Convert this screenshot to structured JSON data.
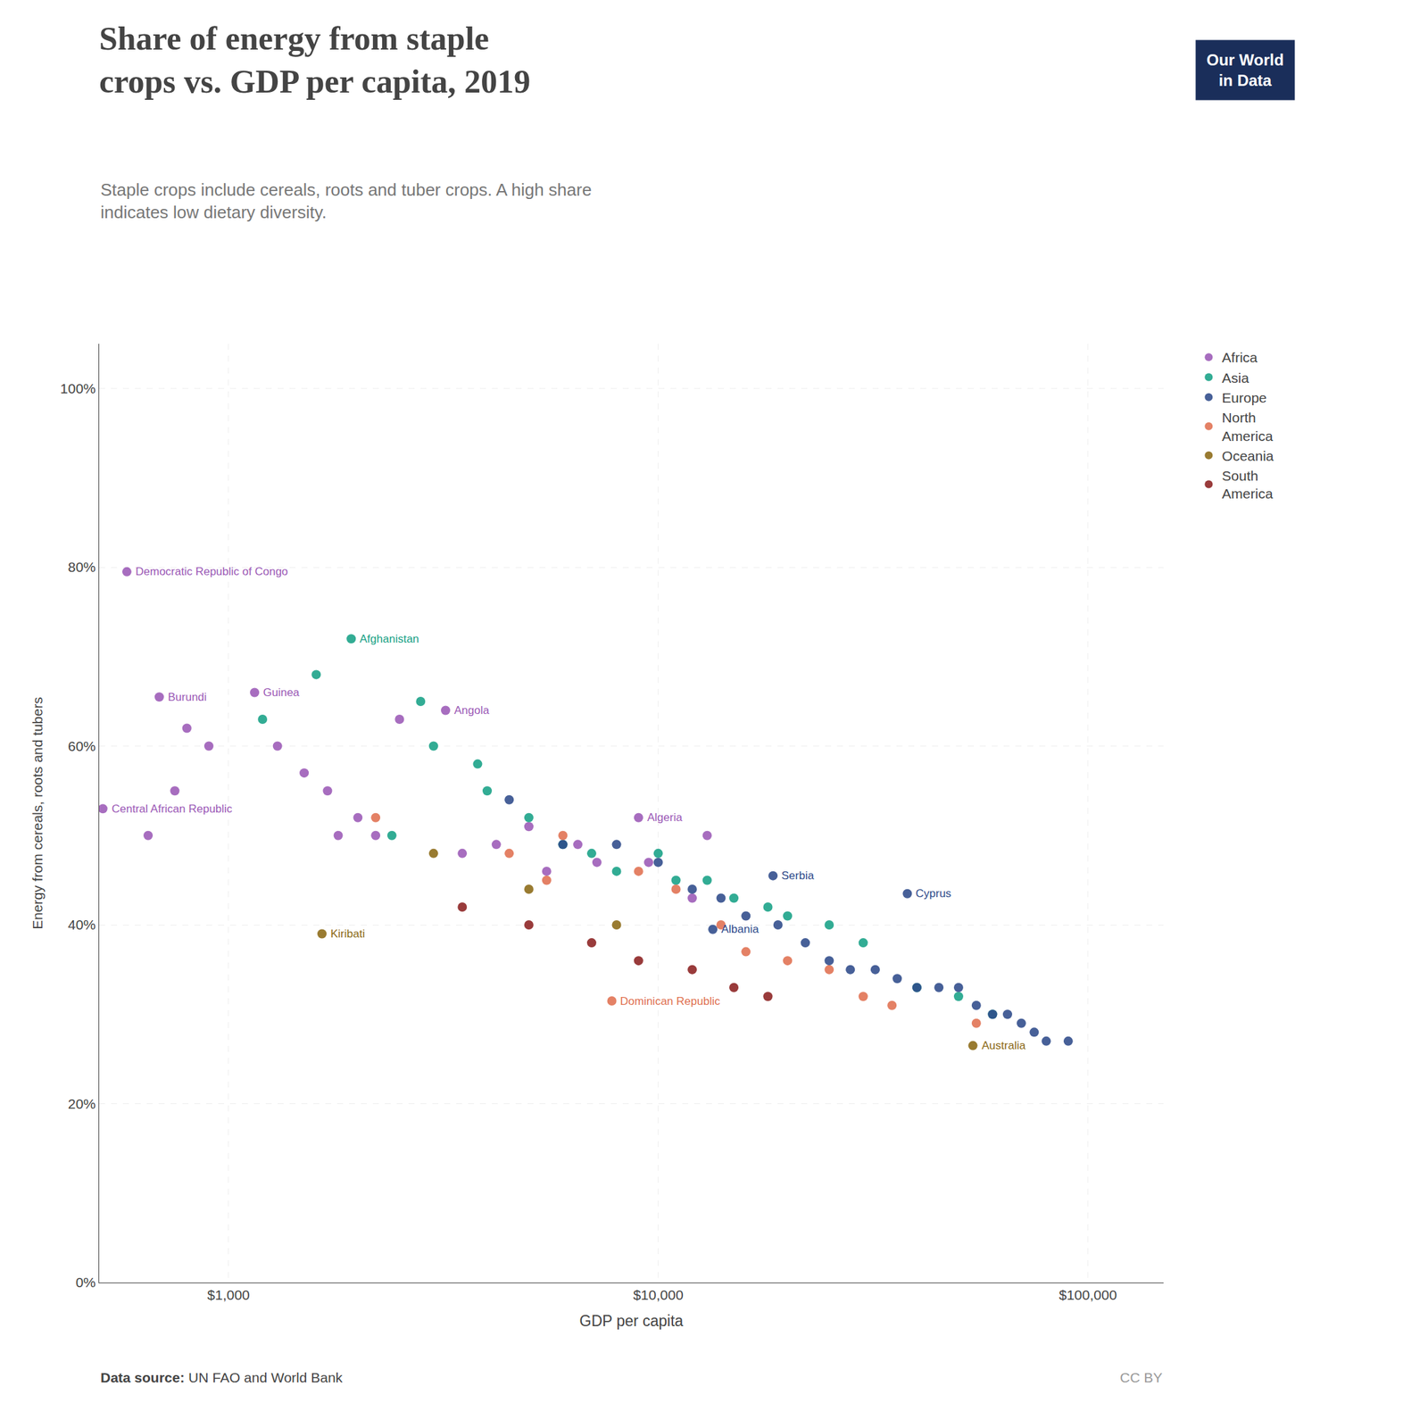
{
  "chart_data": {
    "type": "scatter",
    "title": "Share of energy from staple\ncrops vs. GDP per capita, 2019",
    "subtitle": "Staple crops include cereals, roots and tuber crops. A high share\nindicates low dietary diversity.",
    "xlabel": "GDP per capita",
    "ylabel": "Energy from cereals, roots and tubers",
    "source": [
      "Data source:",
      " UN FAO and World Bank"
    ],
    "credit": "CC BY",
    "logo": {
      "text": "Our World\nin Data",
      "color": "#1a2e5a"
    },
    "log": "x",
    "grid": true,
    "legend": "right",
    "xlim": [
      500,
      150000
    ],
    "xticks": [
      {
        "value": 1000,
        "label": "$1,000"
      },
      {
        "value": 10000,
        "label": "$10,000"
      },
      {
        "value": 100000,
        "label": "$100,000"
      }
    ],
    "ylim": [
      0,
      1.05
    ],
    "yticks": [
      {
        "value": 0,
        "label": "0%"
      },
      {
        "value": 0.2,
        "label": "20%"
      },
      {
        "value": 0.4,
        "label": "40%"
      },
      {
        "value": 0.6,
        "label": "60%"
      },
      {
        "value": 0.8,
        "label": "80%"
      },
      {
        "value": 1.0,
        "label": "100%"
      }
    ],
    "series": [
      {
        "name": "Africa",
        "color": "#9B59B6",
        "x": [
          580,
          690,
          510,
          1150,
          3200,
          9000,
          800,
          900,
          750,
          650,
          1300,
          1500,
          1700,
          2000,
          2200,
          2500,
          1800,
          3500,
          4200,
          5000,
          5500,
          6500,
          7200,
          13000,
          9500,
          12000
        ],
        "values": [
          0.795,
          0.655,
          0.53,
          0.66,
          0.64,
          0.52,
          0.62,
          0.6,
          0.55,
          0.5,
          0.6,
          0.57,
          0.55,
          0.52,
          0.5,
          0.63,
          0.5,
          0.48,
          0.49,
          0.51,
          0.46,
          0.49,
          0.47,
          0.5,
          0.47,
          0.43
        ]
      },
      {
        "name": "Asia",
        "color": "#16A085",
        "x": [
          1930,
          2800,
          1600,
          3000,
          4000,
          5000,
          6000,
          7000,
          8000,
          10000,
          11000,
          13000,
          15000,
          18000,
          20000,
          25000,
          30000,
          40000,
          50000,
          60000,
          2400,
          1200,
          3800
        ],
        "values": [
          0.72,
          0.65,
          0.68,
          0.6,
          0.55,
          0.52,
          0.49,
          0.48,
          0.46,
          0.48,
          0.45,
          0.45,
          0.43,
          0.42,
          0.41,
          0.4,
          0.38,
          0.33,
          0.32,
          0.3,
          0.5,
          0.63,
          0.58
        ]
      },
      {
        "name": "Europe",
        "color": "#2E4A8A",
        "x": [
          18500,
          13400,
          38000,
          4500,
          6000,
          8000,
          10000,
          12000,
          14000,
          16000,
          19000,
          22000,
          25000,
          28000,
          32000,
          36000,
          40000,
          45000,
          50000,
          55000,
          60000,
          65000,
          70000,
          75000,
          80000,
          90000
        ],
        "values": [
          0.455,
          0.395,
          0.435,
          0.54,
          0.49,
          0.49,
          0.47,
          0.44,
          0.43,
          0.41,
          0.4,
          0.38,
          0.36,
          0.35,
          0.35,
          0.34,
          0.33,
          0.33,
          0.33,
          0.31,
          0.3,
          0.3,
          0.29,
          0.28,
          0.27,
          0.27
        ]
      },
      {
        "name": "North\nAmerica",
        "color": "#E07050",
        "x": [
          7800,
          4500,
          6000,
          9000,
          11000,
          14000,
          16000,
          20000,
          25000,
          30000,
          35000,
          55000,
          2200,
          5500
        ],
        "values": [
          0.315,
          0.48,
          0.5,
          0.46,
          0.44,
          0.4,
          0.37,
          0.36,
          0.35,
          0.32,
          0.31,
          0.29,
          0.52,
          0.45
        ]
      },
      {
        "name": "Oceania",
        "color": "#8B6914",
        "x": [
          1650,
          54000,
          3000,
          5000,
          8000
        ],
        "values": [
          0.39,
          0.265,
          0.48,
          0.44,
          0.4
        ]
      },
      {
        "name": "South\nAmerica",
        "color": "#8B2020",
        "x": [
          3500,
          5000,
          7000,
          9000,
          12000,
          15000,
          18000
        ],
        "values": [
          0.42,
          0.4,
          0.38,
          0.36,
          0.35,
          0.33,
          0.32
        ]
      }
    ],
    "annotations": [
      {
        "text": "Democratic Republic of Congo",
        "x": 580,
        "y": 0.795,
        "color": "#9B59B6"
      },
      {
        "text": "Burundi",
        "x": 690,
        "y": 0.655,
        "color": "#9B59B6"
      },
      {
        "text": "Central African Republic",
        "x": 510,
        "y": 0.53,
        "color": "#9B59B6"
      },
      {
        "text": "Guinea",
        "x": 1150,
        "y": 0.66,
        "color": "#9B59B6"
      },
      {
        "text": "Angola",
        "x": 3200,
        "y": 0.64,
        "color": "#9B59B6"
      },
      {
        "text": "Algeria",
        "x": 9000,
        "y": 0.52,
        "color": "#9B59B6"
      },
      {
        "text": "Afghanistan",
        "x": 1930,
        "y": 0.72,
        "color": "#16A085"
      },
      {
        "text": "Serbia",
        "x": 18500,
        "y": 0.455,
        "color": "#2E4A8A"
      },
      {
        "text": "Albania",
        "x": 13400,
        "y": 0.395,
        "color": "#2E4A8A"
      },
      {
        "text": "Cyprus",
        "x": 38000,
        "y": 0.435,
        "color": "#2E4A8A"
      },
      {
        "text": "Kiribati",
        "x": 1650,
        "y": 0.39,
        "color": "#8B6914"
      },
      {
        "text": "Dominican Republic",
        "x": 7800,
        "y": 0.315,
        "color": "#E07050"
      },
      {
        "text": "Australia",
        "x": 54000,
        "y": 0.265,
        "color": "#8B6914"
      }
    ]
  }
}
